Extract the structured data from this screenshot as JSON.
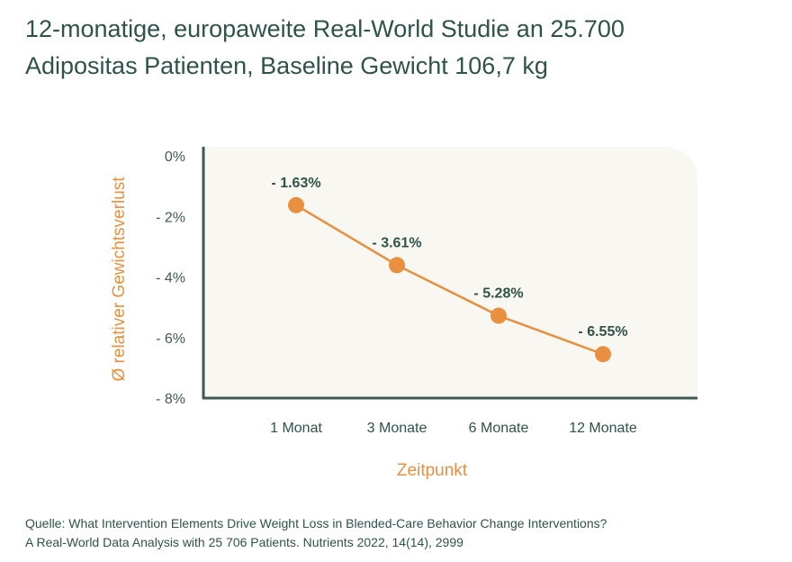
{
  "title": {
    "line1": "12-monatige, europaweite Real-World Studie an 25.700",
    "line2": "Adipositas Patienten, Baseline Gewicht 106,7 kg"
  },
  "chart_data": {
    "type": "line",
    "categories": [
      "1 Monat",
      "3 Monate",
      "6 Monate",
      "12 Monate"
    ],
    "values": [
      -1.63,
      -3.61,
      -5.28,
      -6.55
    ],
    "data_labels": [
      "- 1.63%",
      "- 3.61%",
      "- 5.28%",
      "- 6.55%"
    ],
    "yticks": [
      0,
      -2,
      -4,
      -6,
      -8
    ],
    "ytick_labels": [
      "0%",
      "- 2%",
      "- 4%",
      "- 6%",
      "- 8%"
    ],
    "ylim": [
      -8,
      0
    ],
    "xlabel": "Zeitpunkt",
    "ylabel": "Ø relativer Gewichtsverlust",
    "grid": false,
    "colors": {
      "line": "#e8903f",
      "text": "#2f5249",
      "panel": "#f8f7f2",
      "axis": "#3e5a52"
    }
  },
  "source": {
    "line1": "Quelle: What Intervention Elements Drive Weight Loss in Blended-Care Behavior Change Interventions?",
    "line2": "A Real-World Data Analysis with 25 706 Patients. Nutrients 2022, 14(14), 2999"
  }
}
